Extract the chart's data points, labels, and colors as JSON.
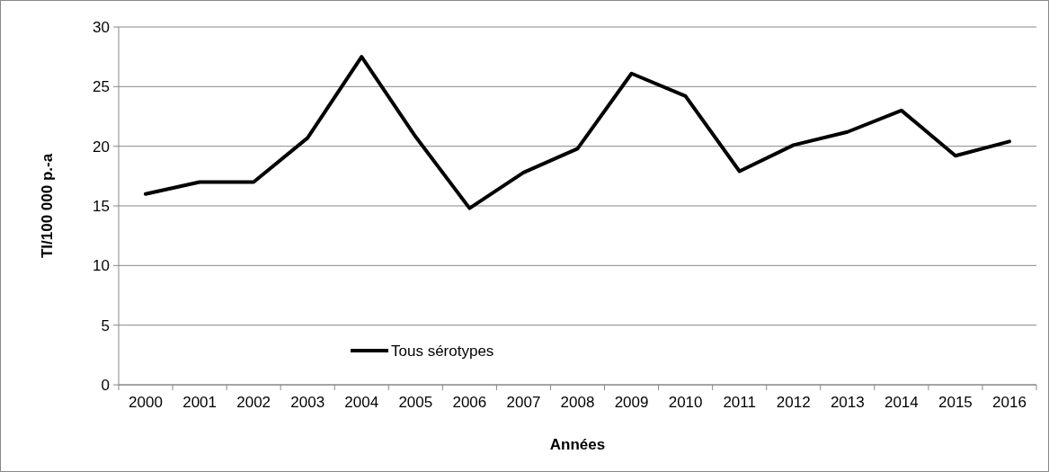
{
  "chart_data": {
    "type": "line",
    "xlabel": "Années",
    "ylabel": "TI/100 000 p.-a",
    "categories": [
      "2000",
      "2001",
      "2002",
      "2003",
      "2004",
      "2005",
      "2006",
      "2007",
      "2008",
      "2009",
      "2010",
      "2011",
      "2012",
      "2013",
      "2014",
      "2015",
      "2016"
    ],
    "series": [
      {
        "name": "Tous sérotypes",
        "color": "#000000",
        "values": [
          16,
          17,
          17,
          20.7,
          27.5,
          20.8,
          14.8,
          17.8,
          19.8,
          26.1,
          24.2,
          17.9,
          20.1,
          21.2,
          23,
          19.2,
          20.4
        ]
      }
    ],
    "ylim": [
      0,
      30
    ],
    "yticks": [
      0,
      5,
      10,
      15,
      20,
      25,
      30
    ],
    "grid": "y",
    "legend": "bottom left",
    "marker": "none",
    "line_style": "solid"
  }
}
